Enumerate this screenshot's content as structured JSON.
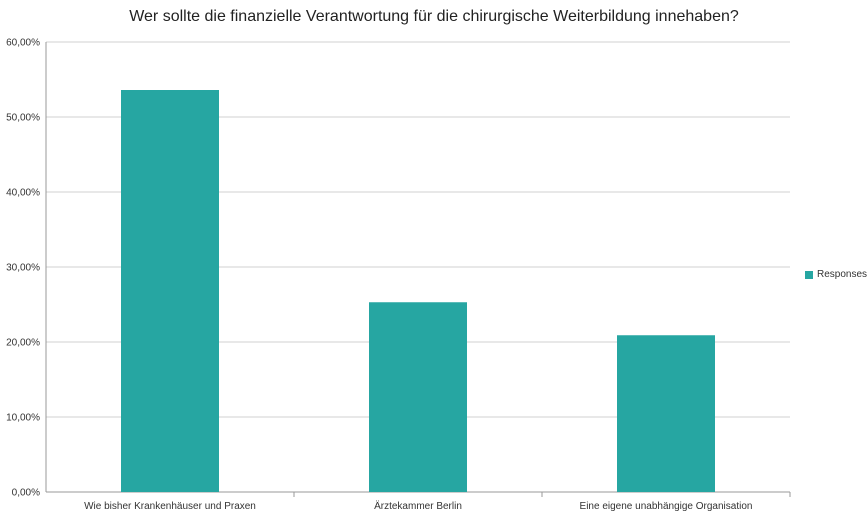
{
  "chart_data": {
    "type": "bar",
    "title": "Wer sollte die finanzielle Verantwortung für die chirurgische Weiterbildung innehaben?",
    "categories": [
      "Wie bisher Krankenhäuser und Praxen",
      "Ärztekammer Berlin",
      "Eine eigene unabhängige Organisation"
    ],
    "series": [
      {
        "name": "Responses",
        "values": [
          53.6,
          25.3,
          20.9
        ]
      }
    ],
    "ylim": [
      0,
      60
    ],
    "yticks": [
      "0,00%",
      "10,00%",
      "20,00%",
      "30,00%",
      "40,00%",
      "50,00%",
      "60,00%"
    ],
    "grid": true,
    "legend_position": "right",
    "colors": {
      "bar": "#26a6a2",
      "grid": "#d0d0d0",
      "axis": "#999999"
    }
  }
}
